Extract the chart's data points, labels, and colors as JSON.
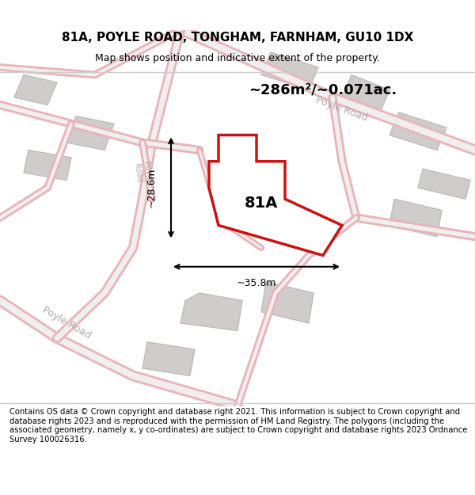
{
  "title": "81A, POYLE ROAD, TONGHAM, FARNHAM, GU10 1DX",
  "subtitle": "Map shows position and indicative extent of the property.",
  "area_label": "~286m²/~0.071ac.",
  "property_label": "81A",
  "dim_width_label": "~35.8m",
  "dim_height_label": "~28.6m",
  "bg_color": "#f5f5f5",
  "map_bg": "#f0eeee",
  "road_color_light": "#e8b4b8",
  "road_color_dark": "#cc3333",
  "plot_color": "#cc1111",
  "building_fill": "#d0cccc",
  "building_stroke": "#c0bbbb",
  "footer_text": "Contains OS data © Crown copyright and database right 2021. This information is subject to Crown copyright and database rights 2023 and is reproduced with the permission of HM Land Registry. The polygons (including the associated geometry, namely x, y co-ordinates) are subject to Crown copyright and database rights 2023 Ordnance Survey 100026316.",
  "road_label_1": "Poyle Road",
  "road_label_2": "Poyle Road"
}
